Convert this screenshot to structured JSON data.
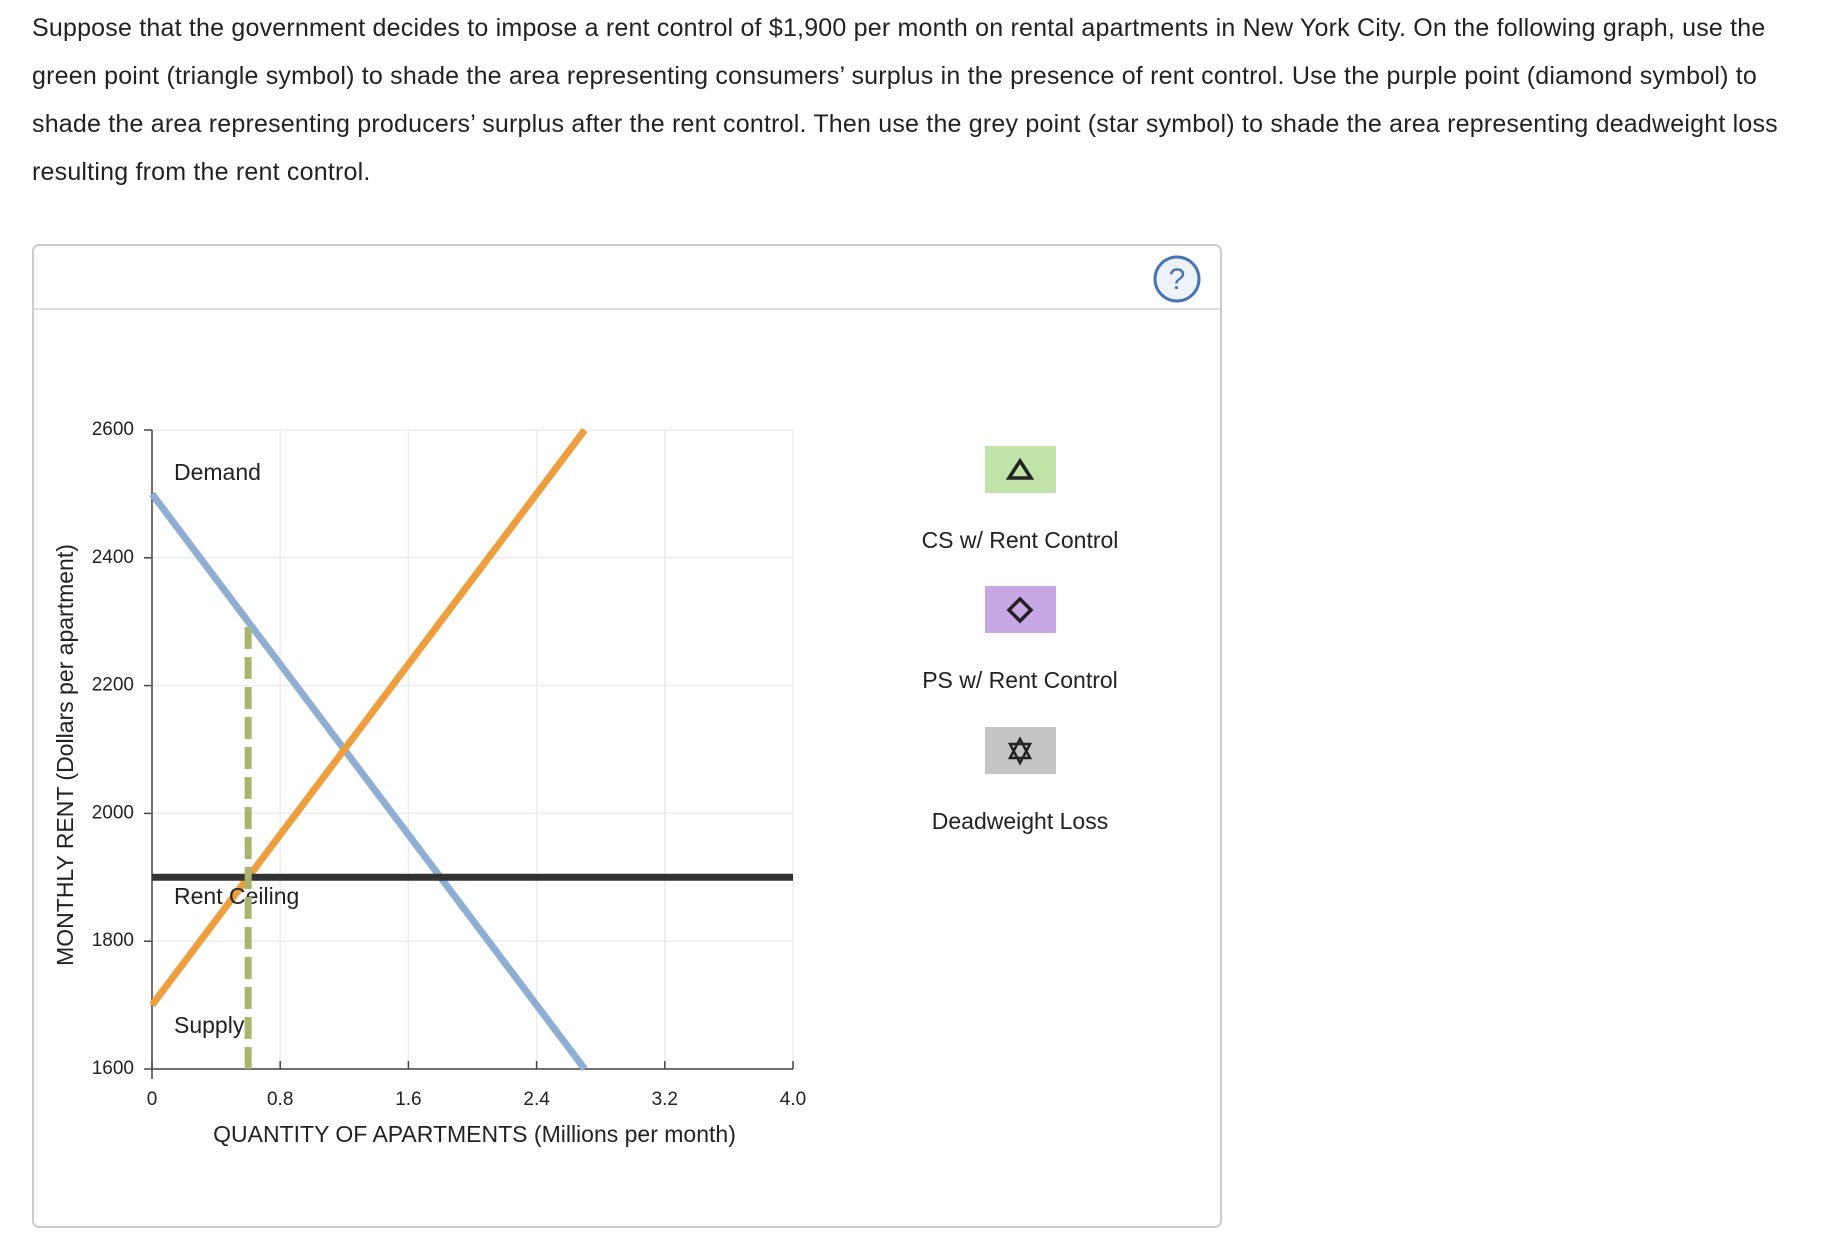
{
  "question": "Suppose that the government decides to impose a rent control of $1,900 per month on rental apartments in New York City. On the following graph, use the green point (triangle symbol) to shade the area representing consumers’ surplus in the presence of rent control. Use the purple point (diamond symbol) to shade the area representing producers’ surplus after the rent control. Then use the grey point (star symbol) to shade the area representing deadweight loss resulting from the rent control.",
  "help": "?",
  "chart_data": {
    "type": "line",
    "xlabel": "QUANTITY OF APARTMENTS (Millions per month)",
    "ylabel": "MONTHLY RENT (Dollars per apartment)",
    "xlim": [
      0,
      4
    ],
    "ylim": [
      1600,
      2600
    ],
    "xticks": [
      0,
      0.8,
      1.6,
      2.4,
      3.2,
      {
        "value": 4,
        "label": "4.0"
      }
    ],
    "yticks": [
      1600,
      1800,
      2000,
      2200,
      2400,
      2600
    ],
    "grid": true,
    "series": [
      {
        "name": "Demand",
        "color": "#8eaed4",
        "x": [
          0,
          2.7
        ],
        "values": [
          2500,
          1600
        ]
      },
      {
        "name": "Supply",
        "color": "#ef9e3d",
        "x": [
          0,
          2.7
        ],
        "values": [
          1700,
          2600
        ]
      },
      {
        "name": "Rent Ceiling",
        "color": "#333333",
        "x": [
          0,
          4
        ],
        "values": [
          1900,
          1900
        ]
      },
      {
        "color": "#a9b56e",
        "dash": true,
        "x": [
          0.6,
          0.6
        ],
        "values": [
          1600,
          2300
        ]
      }
    ],
    "tools": [
      {
        "name": "CS w/ Rent Control",
        "color": "#bfe3a9",
        "symbol": "triangle"
      },
      {
        "name": "PS w/ Rent Control",
        "color": "#c9a6e4",
        "symbol": "diamond"
      },
      {
        "name": "Deadweight Loss",
        "color": "#c4c4c4",
        "symbol": "star"
      }
    ]
  }
}
